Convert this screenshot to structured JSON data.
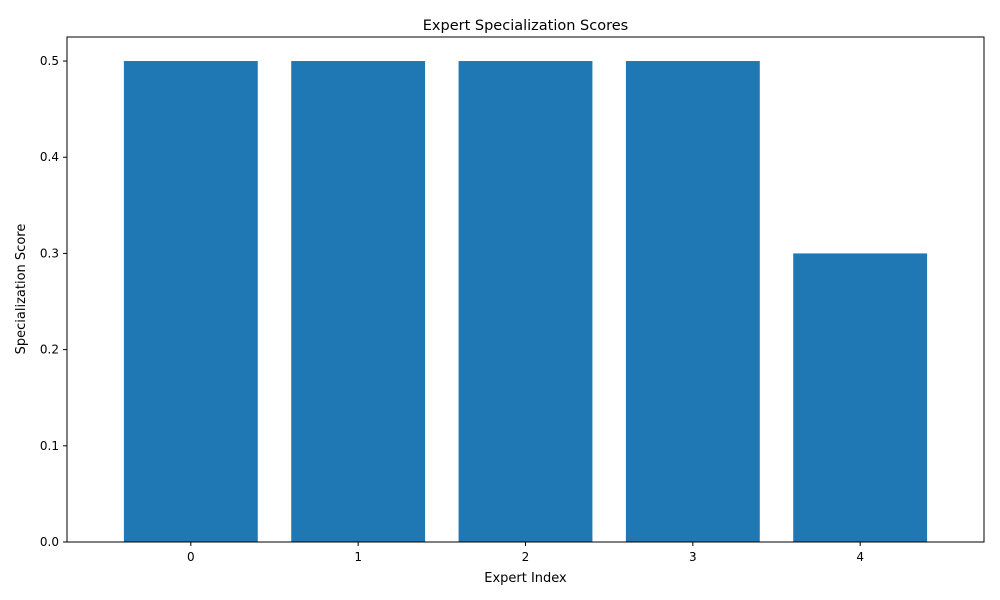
{
  "chart_data": {
    "type": "bar",
    "title": "Expert Specialization Scores",
    "xlabel": "Expert Index",
    "ylabel": "Specialization Score",
    "categories": [
      "0",
      "1",
      "2",
      "3",
      "4"
    ],
    "values": [
      0.5,
      0.5,
      0.5,
      0.5,
      0.3
    ],
    "ylim": [
      0,
      0.5
    ],
    "yticks": [
      "0.0",
      "0.1",
      "0.2",
      "0.3",
      "0.4",
      "0.5"
    ],
    "grid": false,
    "colors": {
      "bar": "#1f77b4",
      "axis": "#000000"
    }
  }
}
